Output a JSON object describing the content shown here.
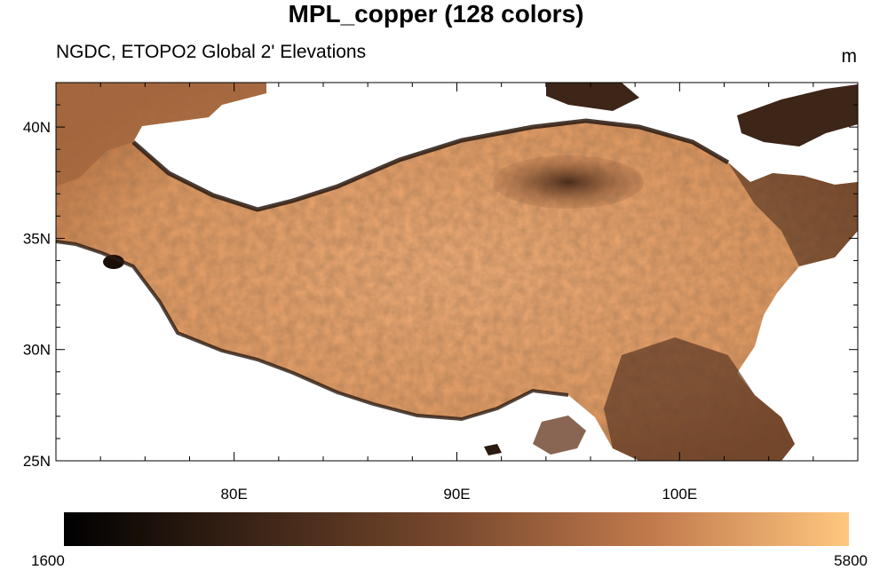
{
  "title": "MPL_copper (128 colors)",
  "subtitle": "NGDC, ETOPO2 Global 2' Elevations",
  "units": "m",
  "map": {
    "lon_range": [
      72,
      108
    ],
    "lat_range": [
      25,
      42
    ],
    "lat_ticks": [
      {
        "value": 25,
        "label": "25N"
      },
      {
        "value": 30,
        "label": "30N"
      },
      {
        "value": 35,
        "label": "35N"
      },
      {
        "value": 40,
        "label": "40N"
      }
    ],
    "lon_ticks": [
      {
        "value": 80,
        "label": "80E"
      },
      {
        "value": 90,
        "label": "90E"
      },
      {
        "value": 100,
        "label": "100E"
      }
    ],
    "colormap": "MPL_copper",
    "colormap_levels": 128,
    "colors": {
      "low": "#000000",
      "mid": "#7a4a2e",
      "high": "#ffc77f",
      "plateau": "#e8a06a",
      "basin": "#5a3622"
    }
  },
  "colorbar": {
    "min_label": "1600",
    "max_label": "5800",
    "min": 1600,
    "max": 5800
  }
}
